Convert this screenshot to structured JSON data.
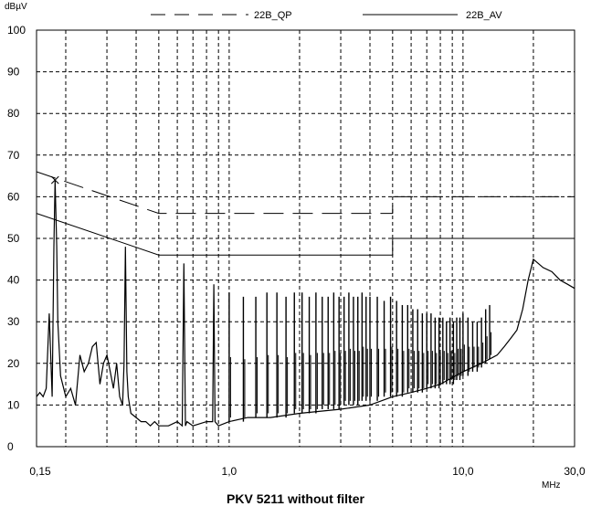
{
  "caption": "PKV 5211 without filter",
  "chart_data": {
    "type": "line",
    "title": "PKV 5211 without filter",
    "ylabel": "dBµV",
    "xlabel": "MHz",
    "x_scale": "log",
    "xlim": [
      0.15,
      30.0
    ],
    "ylim": [
      0,
      100
    ],
    "grid": true,
    "legend_placement": "top",
    "y_ticks": [
      "0",
      "10",
      "20",
      "30",
      "40",
      "50",
      "60",
      "70",
      "80",
      "90",
      "100"
    ],
    "x_ticks": [
      "0,15",
      "1,0",
      "10,0",
      "30,0"
    ],
    "colors": {
      "line": "#000000",
      "grid": "#000000",
      "background": "#ffffff"
    },
    "limits": [
      {
        "name": "22B_QP",
        "style": "dashed",
        "x": [
          0.15,
          0.5,
          5.0,
          5.0,
          30.0
        ],
        "y": [
          66,
          56,
          56,
          60,
          60
        ]
      },
      {
        "name": "22B_AV",
        "style": "solid",
        "x": [
          0.15,
          0.5,
          5.0,
          5.0,
          30.0
        ],
        "y": [
          56,
          46,
          46,
          50,
          50
        ]
      }
    ],
    "series": [
      {
        "style": "solid",
        "x": [
          0.15,
          0.155,
          0.16,
          0.165,
          0.17,
          0.175,
          0.178,
          0.18,
          0.183,
          0.185,
          0.19,
          0.2,
          0.21,
          0.22,
          0.23,
          0.24,
          0.25,
          0.26,
          0.27,
          0.28,
          0.29,
          0.3,
          0.31,
          0.32,
          0.33,
          0.34,
          0.35,
          0.355,
          0.36,
          0.365,
          0.37,
          0.38,
          0.4,
          0.42,
          0.44,
          0.46,
          0.48,
          0.5,
          0.55,
          0.6,
          0.63,
          0.64,
          0.65,
          0.66,
          0.7,
          0.8,
          0.85,
          0.86,
          0.87,
          0.9,
          1.0,
          1.2,
          1.5,
          2.0,
          3.0,
          4.0,
          5.0,
          6.0,
          7.0,
          8.0,
          10.0,
          12.0,
          14.0,
          15.0,
          16.0,
          17.0,
          18.0,
          19.0,
          20.0,
          21.0,
          22.0,
          24.0,
          26.0,
          28.0,
          30.0
        ],
        "y": [
          12,
          13,
          12,
          14,
          32,
          12,
          48,
          64,
          48,
          30,
          17,
          12,
          14,
          10,
          22,
          18,
          20,
          24,
          25,
          15,
          20,
          22,
          18,
          14,
          20,
          12,
          10,
          20,
          48,
          18,
          12,
          8,
          7,
          6,
          6,
          5,
          6,
          5,
          5,
          6,
          5,
          44,
          5,
          6,
          5,
          6,
          6,
          39,
          6,
          5,
          6,
          7,
          7,
          8,
          9,
          10,
          12,
          13,
          14,
          15,
          18,
          20,
          22,
          24,
          26,
          28,
          33,
          40,
          45,
          44,
          43,
          42,
          40,
          39,
          38
        ]
      },
      {
        "style": "spikes",
        "x": [
          1.0,
          1.15,
          1.3,
          1.45,
          1.6,
          1.75,
          1.9,
          2.05,
          2.2,
          2.35,
          2.5,
          2.65,
          2.8,
          2.95,
          3.1,
          3.25,
          3.4,
          3.55,
          3.7,
          3.85,
          4.0,
          4.3,
          4.6,
          4.9,
          5.2,
          5.5,
          5.8,
          6.1,
          6.4,
          6.7,
          7.0,
          7.3,
          7.6,
          7.9,
          8.2,
          8.5,
          8.8,
          9.1,
          9.4,
          9.7,
          10.0,
          10.5,
          11.0,
          11.5,
          12.0,
          12.5,
          13.0
        ],
        "y_base": [
          6,
          6,
          7,
          7,
          7,
          7,
          8,
          8,
          8,
          8,
          9,
          9,
          9,
          9,
          10,
          10,
          10,
          10,
          11,
          11,
          11,
          11,
          12,
          12,
          12,
          12,
          13,
          13,
          13,
          13,
          14,
          14,
          14,
          14,
          15,
          15,
          15,
          15,
          16,
          16,
          17,
          17,
          18,
          18,
          19,
          20,
          21
        ],
        "y_peak": [
          37,
          36,
          36,
          37,
          37,
          36,
          37,
          37,
          36,
          37,
          36,
          36,
          37,
          36,
          36,
          37,
          36,
          36,
          37,
          36,
          36,
          36,
          35,
          36,
          35,
          34,
          34,
          33,
          33,
          32,
          32,
          32,
          31,
          31,
          31,
          30,
          31,
          30,
          31,
          31,
          32,
          31,
          30,
          30,
          31,
          33,
          34
        ]
      }
    ],
    "marker": {
      "x": 0.18,
      "y": 64,
      "symbol": "x"
    }
  }
}
